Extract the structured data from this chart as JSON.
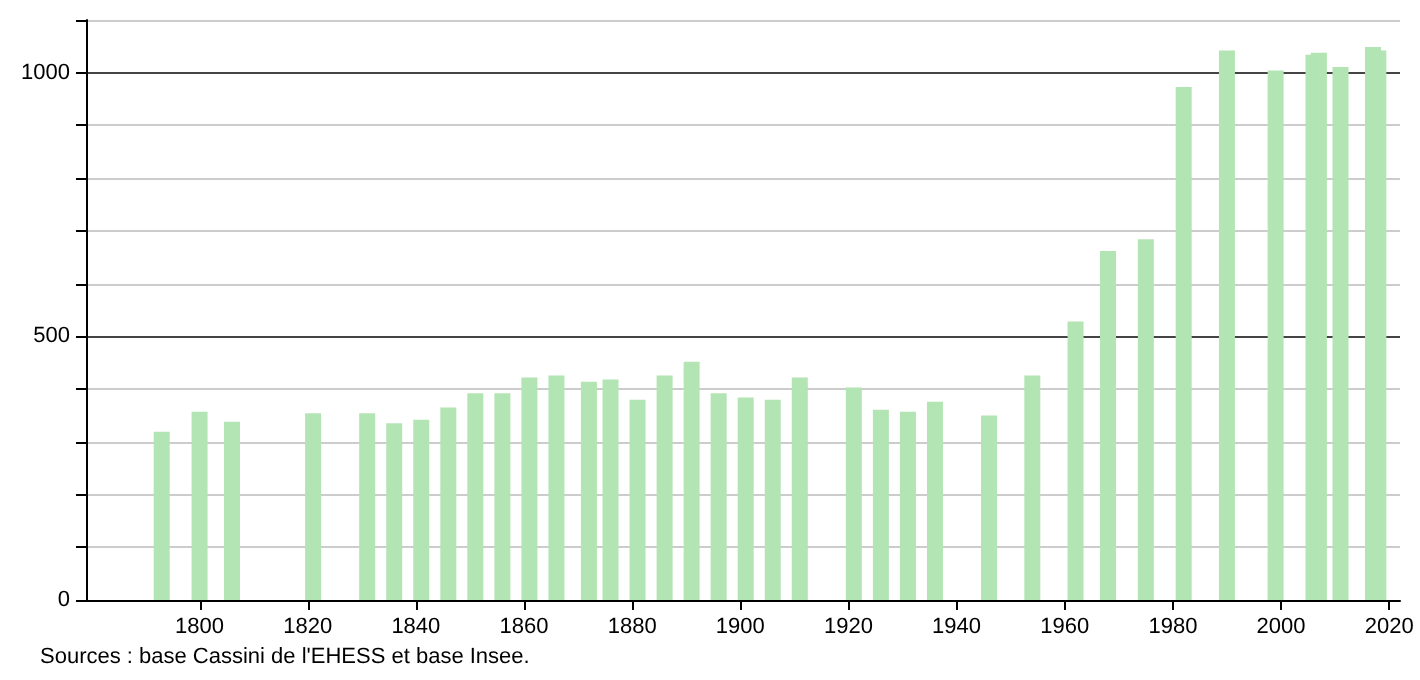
{
  "chart_data": {
    "type": "bar",
    "x": [
      1793,
      1800,
      1806,
      1821,
      1831,
      1836,
      1841,
      1846,
      1851,
      1856,
      1861,
      1866,
      1872,
      1876,
      1881,
      1886,
      1891,
      1896,
      1901,
      1906,
      1911,
      1921,
      1926,
      1931,
      1936,
      1946,
      1954,
      1962,
      1968,
      1975,
      1982,
      1990,
      1999,
      2006,
      2007,
      2011,
      2017,
      2018
    ],
    "values": [
      319,
      357,
      338,
      354,
      354,
      335,
      342,
      365,
      392,
      392,
      422,
      426,
      414,
      418,
      380,
      426,
      452,
      392,
      384,
      380,
      422,
      403,
      361,
      357,
      376,
      350,
      426,
      528,
      662,
      684,
      973,
      1042,
      1004,
      1034,
      1038,
      1011,
      1049,
      1042
    ],
    "color": "#b3e4b3",
    "xlim": [
      1779,
      2022
    ],
    "xticks": [
      1800,
      1820,
      1840,
      1860,
      1880,
      1900,
      1920,
      1940,
      1960,
      1980,
      2000,
      2020
    ],
    "ylim": [
      0,
      1100
    ],
    "yticks": [
      0,
      {
        "value": 100,
        "label": null
      },
      {
        "value": 200,
        "label": null
      },
      {
        "value": 300,
        "label": null
      },
      {
        "value": 400,
        "label": null
      },
      500,
      {
        "value": 600,
        "label": null
      },
      {
        "value": 700,
        "label": null
      },
      {
        "value": 800,
        "label": null
      },
      {
        "value": 900,
        "label": null
      },
      1000,
      {
        "value": 1100,
        "label": null
      }
    ],
    "grid": "y",
    "annotations": [
      "Sources : base Cassini de l'EHESS et base Insee."
    ]
  }
}
